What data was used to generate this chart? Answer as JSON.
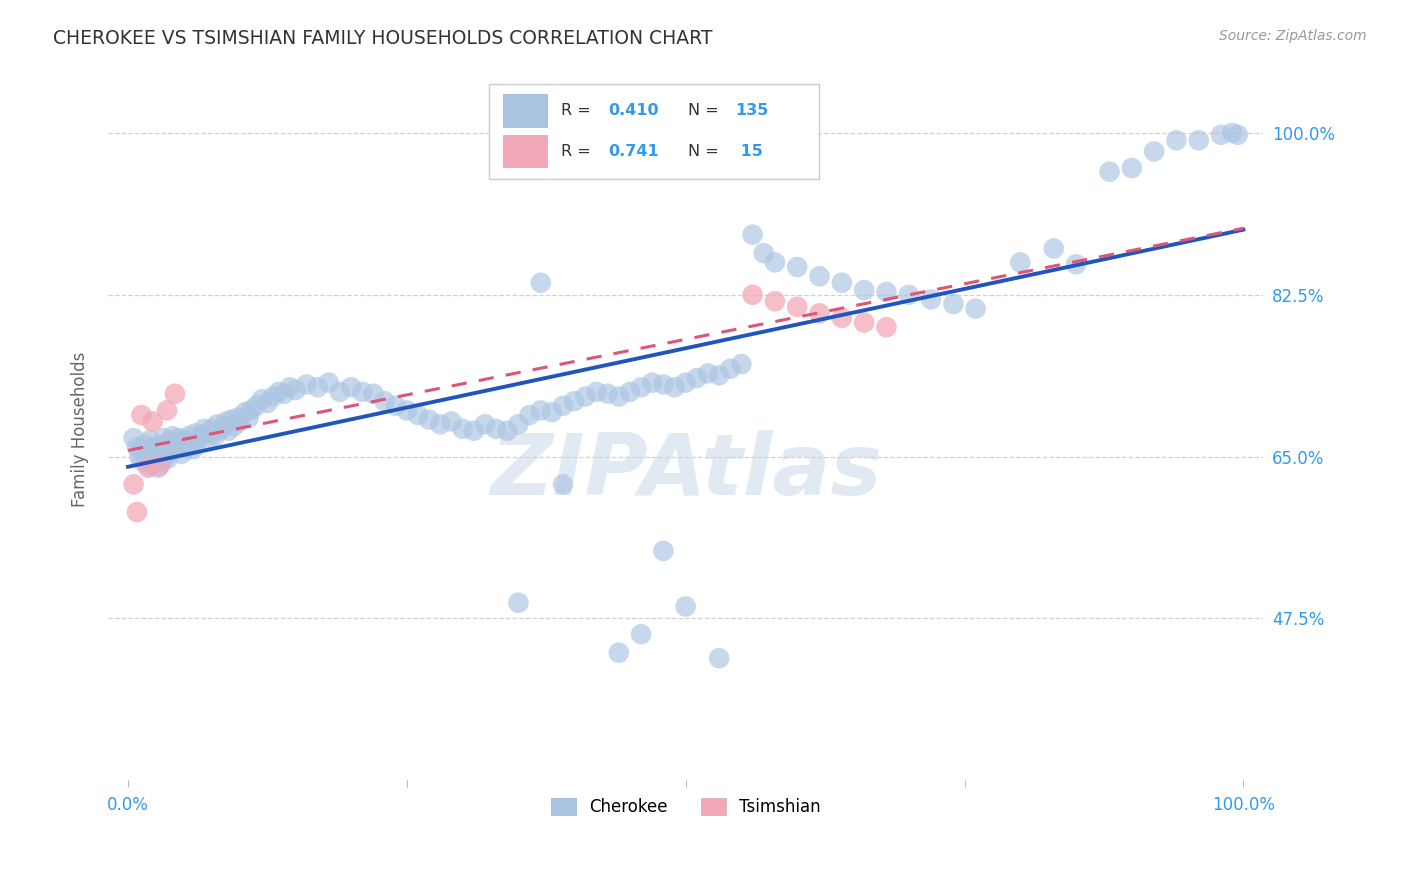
{
  "title": "CHEROKEE VS TSIMSHIAN FAMILY HOUSEHOLDS CORRELATION CHART",
  "source_text": "Source: ZipAtlas.com",
  "ylabel": "Family Households",
  "cherokee_label": "Cherokee",
  "tsimshian_label": "Tsimshian",
  "cherokee_R": "0.410",
  "cherokee_N": "135",
  "tsimshian_R": "0.741",
  "tsimshian_N": " 15",
  "cherokee_scatter_color": "#aac4e2",
  "tsimshian_scatter_color": "#f2a8b8",
  "cherokee_line_color": "#2255bb",
  "tsimshian_line_color": "#dd5577",
  "watermark_color": "#cad8ea",
  "background_color": "#ffffff",
  "grid_color": "#cccccc",
  "title_color": "#333333",
  "axis_tick_color": "#3399ee",
  "legend_text_color": "#333333",
  "legend_value_color": "#3399ee",
  "xmin": 0.0,
  "xmax": 1.0,
  "ymin": 0.3,
  "ymax": 1.06,
  "ytick_values": [
    0.475,
    0.65,
    0.825,
    1.0
  ],
  "ytick_labels": [
    "47.5%",
    "65.0%",
    "82.5%",
    "100.0%"
  ],
  "xtick_values": [
    0.0,
    0.25,
    0.5,
    0.75,
    1.0
  ],
  "xtick_labels": [
    "0.0%",
    "",
    "",
    "",
    "100.0%"
  ],
  "cherokee_x": [
    0.005,
    0.008,
    0.01,
    0.012,
    0.013,
    0.015,
    0.016,
    0.018,
    0.019,
    0.02,
    0.021,
    0.022,
    0.023,
    0.025,
    0.026,
    0.027,
    0.028,
    0.03,
    0.031,
    0.032,
    0.033,
    0.034,
    0.035,
    0.036,
    0.038,
    0.04,
    0.042,
    0.043,
    0.045,
    0.047,
    0.048,
    0.05,
    0.052,
    0.054,
    0.056,
    0.058,
    0.06,
    0.062,
    0.065,
    0.068,
    0.07,
    0.072,
    0.075,
    0.078,
    0.08,
    0.082,
    0.085,
    0.088,
    0.09,
    0.093,
    0.095,
    0.098,
    0.1,
    0.105,
    0.108,
    0.11,
    0.115,
    0.12,
    0.125,
    0.13,
    0.135,
    0.14,
    0.145,
    0.15,
    0.16,
    0.17,
    0.18,
    0.19,
    0.2,
    0.21,
    0.22,
    0.23,
    0.24,
    0.25,
    0.26,
    0.27,
    0.28,
    0.29,
    0.3,
    0.31,
    0.32,
    0.33,
    0.34,
    0.35,
    0.36,
    0.37,
    0.38,
    0.39,
    0.4,
    0.41,
    0.42,
    0.43,
    0.44,
    0.45,
    0.46,
    0.47,
    0.48,
    0.49,
    0.5,
    0.51,
    0.52,
    0.53,
    0.54,
    0.55,
    0.56,
    0.57,
    0.58,
    0.6,
    0.62,
    0.64,
    0.66,
    0.68,
    0.7,
    0.72,
    0.74,
    0.76,
    0.8,
    0.83,
    0.85,
    0.88,
    0.9,
    0.92,
    0.94,
    0.96,
    0.98,
    0.99,
    0.995,
    0.37,
    0.5,
    0.53,
    0.48,
    0.46,
    0.44,
    0.39,
    0.35
  ],
  "cherokee_y": [
    0.67,
    0.66,
    0.65,
    0.658,
    0.645,
    0.663,
    0.648,
    0.655,
    0.64,
    0.668,
    0.652,
    0.643,
    0.66,
    0.655,
    0.648,
    0.638,
    0.662,
    0.658,
    0.645,
    0.67,
    0.66,
    0.652,
    0.665,
    0.648,
    0.658,
    0.672,
    0.665,
    0.658,
    0.67,
    0.66,
    0.653,
    0.668,
    0.66,
    0.672,
    0.665,
    0.658,
    0.675,
    0.668,
    0.672,
    0.68,
    0.675,
    0.668,
    0.68,
    0.672,
    0.685,
    0.678,
    0.682,
    0.688,
    0.678,
    0.69,
    0.683,
    0.692,
    0.688,
    0.698,
    0.692,
    0.7,
    0.705,
    0.712,
    0.708,
    0.715,
    0.72,
    0.718,
    0.725,
    0.722,
    0.728,
    0.725,
    0.73,
    0.72,
    0.725,
    0.72,
    0.718,
    0.71,
    0.705,
    0.7,
    0.695,
    0.69,
    0.685,
    0.688,
    0.68,
    0.678,
    0.685,
    0.68,
    0.678,
    0.685,
    0.695,
    0.7,
    0.698,
    0.705,
    0.71,
    0.715,
    0.72,
    0.718,
    0.715,
    0.72,
    0.725,
    0.73,
    0.728,
    0.725,
    0.73,
    0.735,
    0.74,
    0.738,
    0.745,
    0.75,
    0.89,
    0.87,
    0.86,
    0.855,
    0.845,
    0.838,
    0.83,
    0.828,
    0.825,
    0.82,
    0.815,
    0.81,
    0.86,
    0.875,
    0.858,
    0.958,
    0.962,
    0.98,
    0.992,
    0.992,
    0.998,
    1.0,
    0.998,
    0.838,
    0.488,
    0.432,
    0.548,
    0.458,
    0.438,
    0.62,
    0.492
  ],
  "tsimshian_x": [
    0.005,
    0.008,
    0.012,
    0.018,
    0.022,
    0.028,
    0.035,
    0.042,
    0.56,
    0.58,
    0.6,
    0.62,
    0.64,
    0.66,
    0.68
  ],
  "tsimshian_y": [
    0.62,
    0.59,
    0.695,
    0.638,
    0.688,
    0.64,
    0.7,
    0.718,
    0.825,
    0.818,
    0.812,
    0.805,
    0.8,
    0.795,
    0.79
  ]
}
